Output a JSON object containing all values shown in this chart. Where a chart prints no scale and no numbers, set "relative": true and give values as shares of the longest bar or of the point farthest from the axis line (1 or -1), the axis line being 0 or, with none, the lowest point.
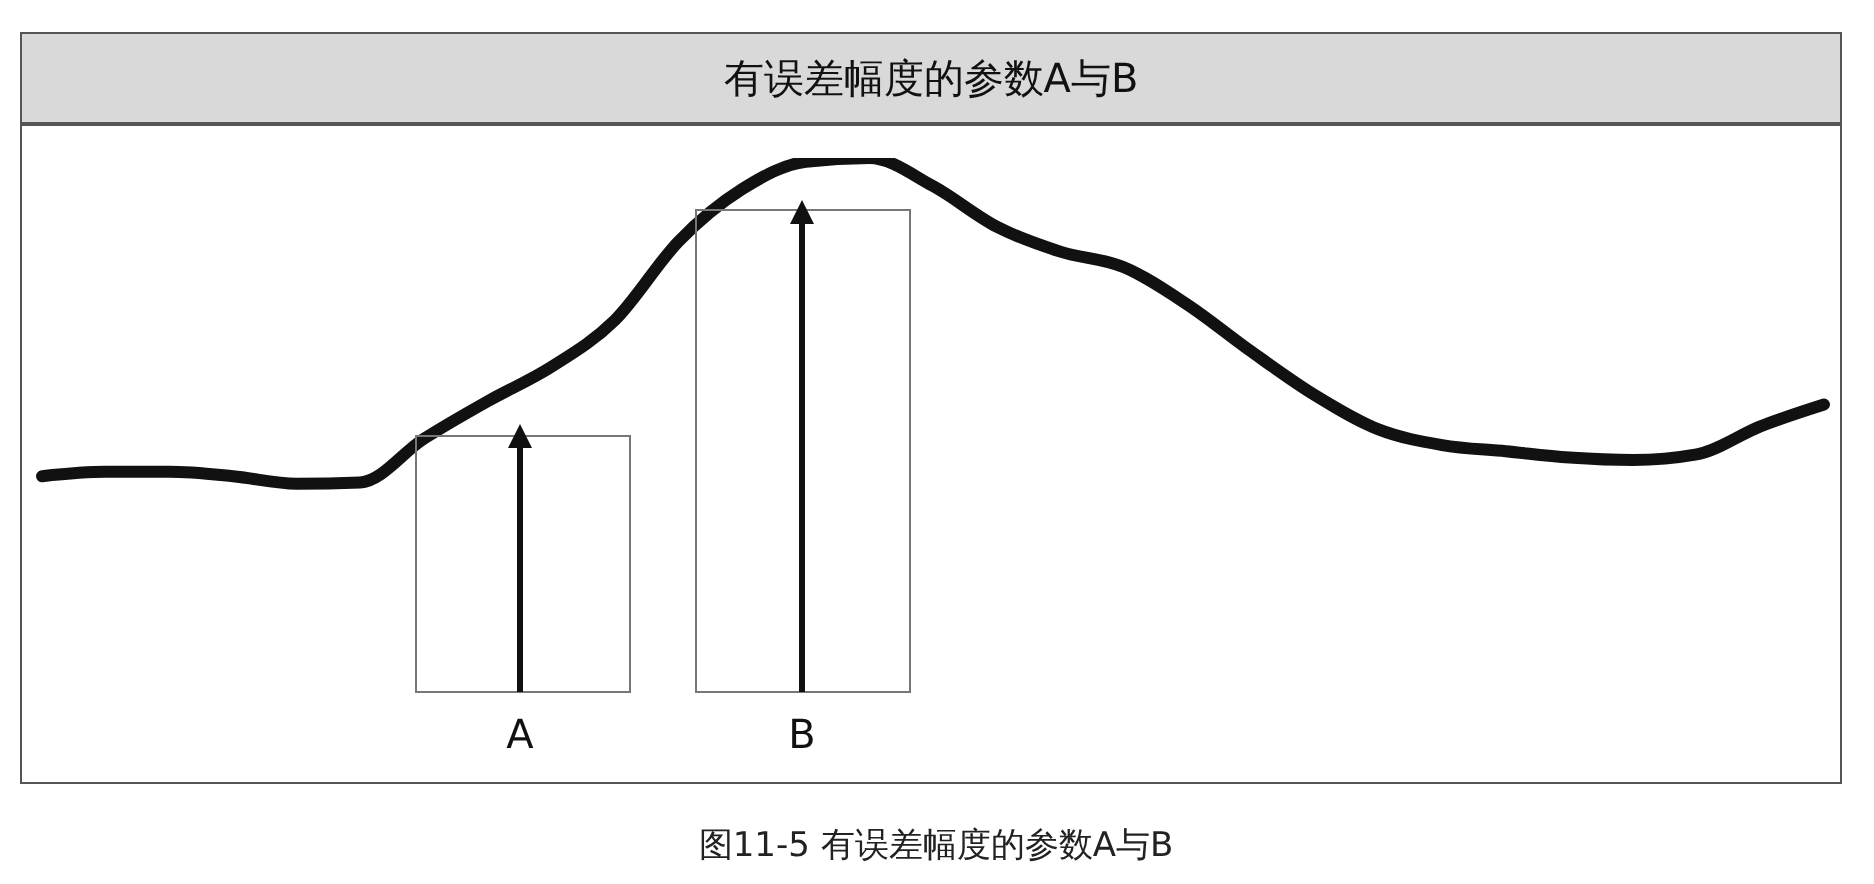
{
  "chart_data": {
    "type": "line",
    "title": "有误差幅度的参数A与B",
    "relative": true,
    "marker": "none",
    "grid": false,
    "legend": false,
    "categories": [
      null,
      null,
      null,
      null,
      null,
      null,
      null,
      null,
      null,
      null,
      null,
      null,
      null,
      null,
      null,
      null,
      null,
      null,
      null,
      null,
      null,
      null,
      null,
      null,
      null,
      null,
      null,
      null,
      null
    ],
    "series": [
      {
        "color": "#111111",
        "values": [
          0.49,
          0.497,
          0.497,
          0.49,
          0.478,
          0.48,
          0.55,
          0.61,
          0.665,
          0.74,
          0.866,
          0.95,
          0.994,
          1,
          0.955,
          0.89,
          0.85,
          0.825,
          0.765,
          0.69,
          0.62,
          0.565,
          0.54,
          0.53,
          0.52,
          0.516,
          0.525,
          0.57,
          0.605
        ]
      }
    ],
    "annotations": [
      "A",
      "B",
      "图11-5 有误差幅度的参数A与B"
    ]
  }
}
